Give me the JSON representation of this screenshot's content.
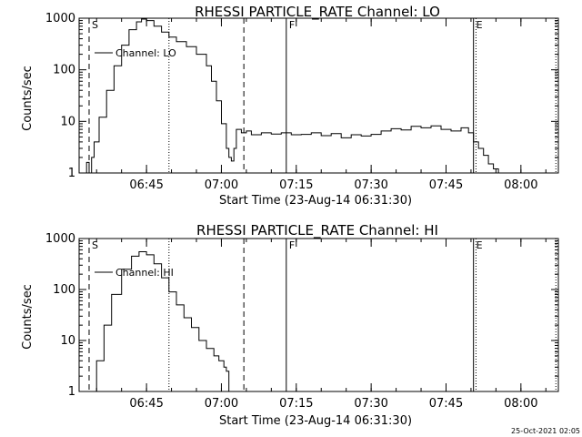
{
  "footer": {
    "timestamp": "25-Oct-2021 02:05"
  },
  "chart_data": [
    {
      "type": "line",
      "title": "RHESSI PARTICLE_RATE Channel: LO",
      "xlabel": "Start Time (23-Aug-14 06:31:30)",
      "ylabel": "Counts/sec",
      "ylog": true,
      "ylim": [
        1,
        1000
      ],
      "xlim": [
        "06:31:30",
        "08:07:30"
      ],
      "x_ticks": [
        "06:45",
        "07:00",
        "07:15",
        "07:30",
        "07:45",
        "08:00"
      ],
      "y_ticks": [
        "1",
        "10",
        "100",
        "1000"
      ],
      "legend": {
        "label": "Channel: LO",
        "position": "top-left"
      },
      "markers": [
        {
          "label": "S",
          "time": "06:33:30",
          "style": "dashed"
        },
        {
          "label": "",
          "time": "06:49:30",
          "style": "dotted"
        },
        {
          "label": "",
          "time": "07:04:30",
          "style": "dashed"
        },
        {
          "label": "F",
          "time": "07:13:00",
          "style": "solid"
        },
        {
          "label": "E",
          "time": "07:50:30",
          "style": "solid"
        },
        {
          "label": "",
          "time": "07:51:00",
          "style": "dotted"
        },
        {
          "label": "",
          "time": "08:07:00",
          "style": "dotted"
        }
      ],
      "series": [
        {
          "name": "Channel: LO",
          "points": [
            [
              "06:32:30",
              1
            ],
            [
              "06:33:00",
              1.6
            ],
            [
              "06:33:30",
              1
            ],
            [
              "06:34:00",
              2
            ],
            [
              "06:34:30",
              4
            ],
            [
              "06:35:30",
              12
            ],
            [
              "06:37:00",
              40
            ],
            [
              "06:38:30",
              120
            ],
            [
              "06:40:00",
              300
            ],
            [
              "06:41:30",
              600
            ],
            [
              "06:43:00",
              850
            ],
            [
              "06:44:00",
              960
            ],
            [
              "06:45:00",
              900
            ],
            [
              "06:46:30",
              700
            ],
            [
              "06:48:00",
              540
            ],
            [
              "06:49:30",
              430
            ],
            [
              "06:51:00",
              350
            ],
            [
              "06:53:00",
              280
            ],
            [
              "06:55:00",
              200
            ],
            [
              "06:57:00",
              120
            ],
            [
              "06:58:00",
              60
            ],
            [
              "06:59:00",
              25
            ],
            [
              "07:00:00",
              9
            ],
            [
              "07:01:00",
              3
            ],
            [
              "07:01:30",
              2
            ],
            [
              "07:02:00",
              1.7
            ],
            [
              "07:02:30",
              3
            ],
            [
              "07:03:00",
              7
            ],
            [
              "07:04:00",
              6
            ],
            [
              "07:05:00",
              6.5
            ],
            [
              "07:06:00",
              5.5
            ],
            [
              "07:08:00",
              6
            ],
            [
              "07:10:00",
              5.7
            ],
            [
              "07:12:00",
              6
            ],
            [
              "07:14:00",
              5.5
            ],
            [
              "07:16:00",
              5.6
            ],
            [
              "07:18:00",
              6
            ],
            [
              "07:20:00",
              5.3
            ],
            [
              "07:22:00",
              5.8
            ],
            [
              "07:24:00",
              4.8
            ],
            [
              "07:26:00",
              5.5
            ],
            [
              "07:28:00",
              5.2
            ],
            [
              "07:30:00",
              5.6
            ],
            [
              "07:32:00",
              6.5
            ],
            [
              "07:34:00",
              7.2
            ],
            [
              "07:36:00",
              6.8
            ],
            [
              "07:38:00",
              8
            ],
            [
              "07:40:00",
              7.5
            ],
            [
              "07:42:00",
              8.2
            ],
            [
              "07:44:00",
              7
            ],
            [
              "07:46:00",
              6.5
            ],
            [
              "07:48:00",
              7.5
            ],
            [
              "07:49:30",
              6
            ],
            [
              "07:50:30",
              4
            ],
            [
              "07:51:30",
              3
            ],
            [
              "07:52:30",
              2.2
            ],
            [
              "07:53:30",
              1.5
            ],
            [
              "07:54:30",
              1.2
            ],
            [
              "07:55:30",
              1
            ],
            [
              "07:57:00",
              1
            ],
            [
              "07:59:00",
              1
            ],
            [
              "08:01:00",
              1
            ],
            [
              "08:03:00",
              1
            ],
            [
              "08:05:00",
              1
            ]
          ]
        }
      ]
    },
    {
      "type": "line",
      "title": "RHESSI PARTICLE_RATE Channel: HI",
      "xlabel": "Start Time (23-Aug-14 06:31:30)",
      "ylabel": "Counts/sec",
      "ylog": true,
      "ylim": [
        1,
        1000
      ],
      "xlim": [
        "06:31:30",
        "08:07:30"
      ],
      "x_ticks": [
        "06:45",
        "07:00",
        "07:15",
        "07:30",
        "07:45",
        "08:00"
      ],
      "y_ticks": [
        "1",
        "10",
        "100",
        "1000"
      ],
      "legend": {
        "label": "Channel: HI",
        "position": "top-left"
      },
      "markers": [
        {
          "label": "S",
          "time": "06:33:30",
          "style": "dashed"
        },
        {
          "label": "",
          "time": "06:49:30",
          "style": "dotted"
        },
        {
          "label": "",
          "time": "07:04:30",
          "style": "dashed"
        },
        {
          "label": "F",
          "time": "07:13:00",
          "style": "solid"
        },
        {
          "label": "E",
          "time": "07:50:30",
          "style": "solid"
        },
        {
          "label": "",
          "time": "07:51:00",
          "style": "dotted"
        },
        {
          "label": "",
          "time": "08:07:00",
          "style": "dotted"
        }
      ],
      "series": [
        {
          "name": "Channel: HI",
          "points": [
            [
              "06:34:00",
              1
            ],
            [
              "06:35:00",
              4
            ],
            [
              "06:36:30",
              20
            ],
            [
              "06:38:00",
              80
            ],
            [
              "06:40:00",
              250
            ],
            [
              "06:42:00",
              450
            ],
            [
              "06:43:30",
              550
            ],
            [
              "06:45:00",
              480
            ],
            [
              "06:46:30",
              320
            ],
            [
              "06:48:00",
              170
            ],
            [
              "06:49:30",
              90
            ],
            [
              "06:51:00",
              50
            ],
            [
              "06:52:30",
              28
            ],
            [
              "06:54:00",
              18
            ],
            [
              "06:55:30",
              10
            ],
            [
              "06:57:00",
              7
            ],
            [
              "06:58:30",
              5
            ],
            [
              "06:59:30",
              4
            ],
            [
              "07:00:30",
              3
            ],
            [
              "07:01:00",
              2.5
            ],
            [
              "07:01:30",
              1
            ]
          ]
        }
      ]
    }
  ]
}
